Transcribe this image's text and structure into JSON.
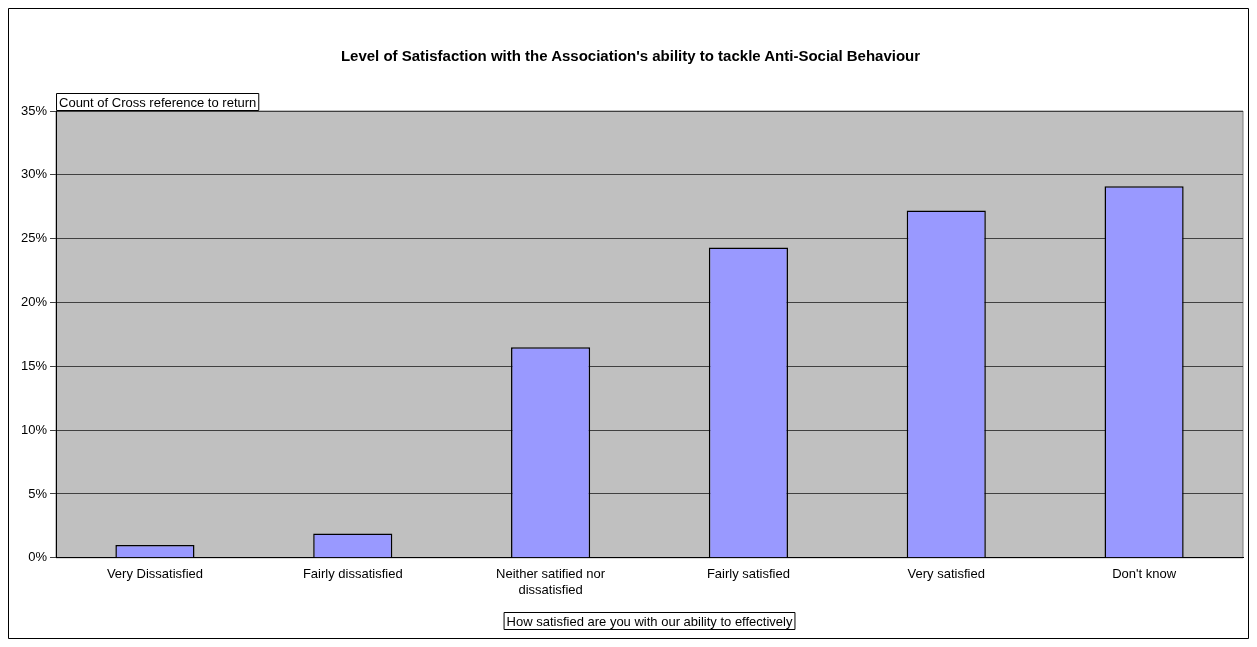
{
  "chart_data": {
    "type": "bar",
    "title": "Level of Satisfaction with the Association's ability to tackle Anti-Social Behaviour",
    "ylabel": "Count of Cross reference to return",
    "xlabel": "How satisfied are you with our ability to effectively",
    "categories": [
      "Very Dissatisfied",
      "Fairly dissatisfied",
      "Neither satified nor dissatisfied",
      "Fairly satisfied",
      "Very satisfied",
      "Don't know"
    ],
    "values": [
      1,
      1.9,
      16.5,
      24.3,
      27.2,
      29.1
    ],
    "color": "#9999ff",
    "ylim": [
      0,
      35
    ],
    "yticks": [
      {
        "value": 0,
        "label": "0%"
      },
      {
        "value": 5,
        "label": "5%"
      },
      {
        "value": 10,
        "label": "10%"
      },
      {
        "value": 15,
        "label": "15%"
      },
      {
        "value": 20,
        "label": "20%"
      },
      {
        "value": 25,
        "label": "25%"
      },
      {
        "value": 30,
        "label": "30%"
      },
      {
        "value": 35,
        "label": "35%"
      }
    ],
    "grid": "y",
    "legend": false
  }
}
